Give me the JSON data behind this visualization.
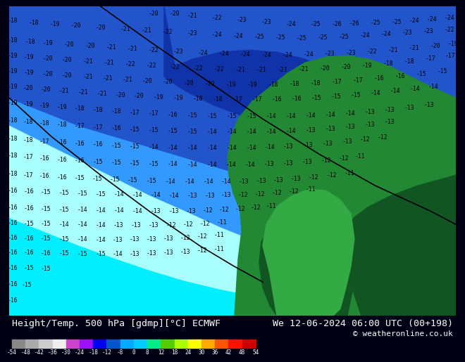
{
  "title_left": "Height/Temp. 500 hPa [gdmp][°C] ECMWF",
  "title_right": "We 12-06-2024 06:00 UTC (00+198)",
  "copyright": "© weatheronline.co.uk",
  "colorbar_values": [
    -54,
    -48,
    -42,
    -36,
    -30,
    -24,
    -18,
    -12,
    -8,
    0,
    8,
    12,
    18,
    24,
    30,
    36,
    42,
    48,
    54
  ],
  "colorbar_colors": [
    "#888888",
    "#aaaaaa",
    "#cccccc",
    "#eeeeee",
    "#cc44cc",
    "#9911ff",
    "#0000ee",
    "#0055cc",
    "#00aaff",
    "#00ccff",
    "#00ee88",
    "#55cc00",
    "#aaff00",
    "#ffff00",
    "#ffaa00",
    "#ff5500",
    "#ff1100",
    "#cc0000"
  ],
  "bg_dark": "#000015",
  "color_light_cyan": "#00eeff",
  "color_mid_blue": "#3399ff",
  "color_dark_blue": "#2255cc",
  "color_deep_blue": "#1133aa",
  "color_pale_cyan": "#aaffff",
  "color_green": "#228833",
  "color_dark_green": "#115522",
  "color_med_green": "#33aa44",
  "title_fontsize": 9.5,
  "copyright_fontsize": 8,
  "cb_label_fontsize": 5.5,
  "contour_label_fontsize": 5.8,
  "contour_color": "#000000",
  "contour_lw": 0.6,
  "map_line_color": "#d08080",
  "border_color": "#c0c0c0"
}
